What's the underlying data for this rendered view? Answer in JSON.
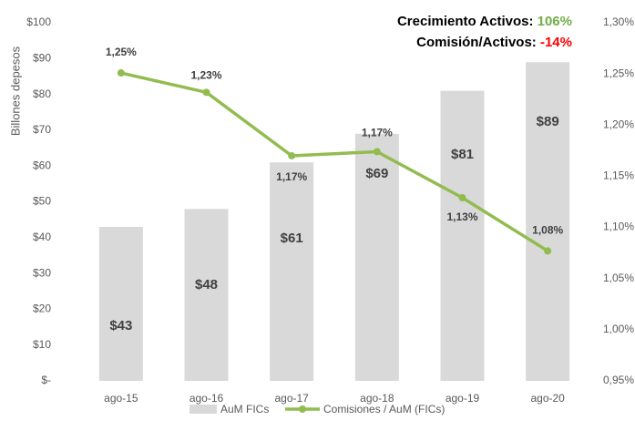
{
  "chart_data": {
    "type": "bar_line",
    "y_label": "Billones depesos",
    "categories": [
      "ago-15",
      "ago-16",
      "ago-17",
      "ago-18",
      "ago-19",
      "ago-20"
    ],
    "annotations": [
      {
        "label": "Crecimiento Activos:",
        "value": "106%",
        "color": "#70ad47"
      },
      {
        "label": "Comisión/Activos:",
        "value": "-14%",
        "color": "#ff0000"
      }
    ],
    "series": [
      {
        "name": "AuM FICs",
        "type": "bar",
        "color": "#d9d9d9",
        "values": [
          43,
          48,
          61,
          69,
          81,
          89
        ],
        "value_labels": [
          "$43",
          "$48",
          "$61",
          "$69",
          "$81",
          "$89"
        ]
      },
      {
        "name": "Comisiones / AuM (FICs)",
        "type": "line",
        "axis": "y2",
        "color": "#92bc50",
        "values": [
          1.251,
          1.232,
          1.17,
          1.174,
          1.129,
          1.077
        ],
        "value_labels": [
          "1,25%",
          "1,23%",
          "1,17%",
          "1,17%",
          "1,13%",
          "1,08%"
        ]
      }
    ],
    "ylim": [
      0,
      100
    ],
    "yticks": [
      {
        "value": 0,
        "label": "$-"
      },
      {
        "value": 10,
        "label": "$10"
      },
      {
        "value": 20,
        "label": "$20"
      },
      {
        "value": 30,
        "label": "$30"
      },
      {
        "value": 40,
        "label": "$40"
      },
      {
        "value": 50,
        "label": "$50"
      },
      {
        "value": 60,
        "label": "$60"
      },
      {
        "value": 70,
        "label": "$70"
      },
      {
        "value": 80,
        "label": "$80"
      },
      {
        "value": 90,
        "label": "$90"
      },
      {
        "value": 100,
        "label": "$100"
      }
    ],
    "y2lim": [
      0.95,
      1.3
    ],
    "y2ticks": [
      {
        "value": 0.95,
        "label": "0,95%"
      },
      {
        "value": 1.0,
        "label": "1,00%"
      },
      {
        "value": 1.05,
        "label": "1,05%"
      },
      {
        "value": 1.1,
        "label": "1,10%"
      },
      {
        "value": 1.15,
        "label": "1,15%"
      },
      {
        "value": 1.2,
        "label": "1,20%"
      },
      {
        "value": 1.25,
        "label": "1,25%"
      },
      {
        "value": 1.3,
        "label": "1,30%"
      }
    ]
  }
}
